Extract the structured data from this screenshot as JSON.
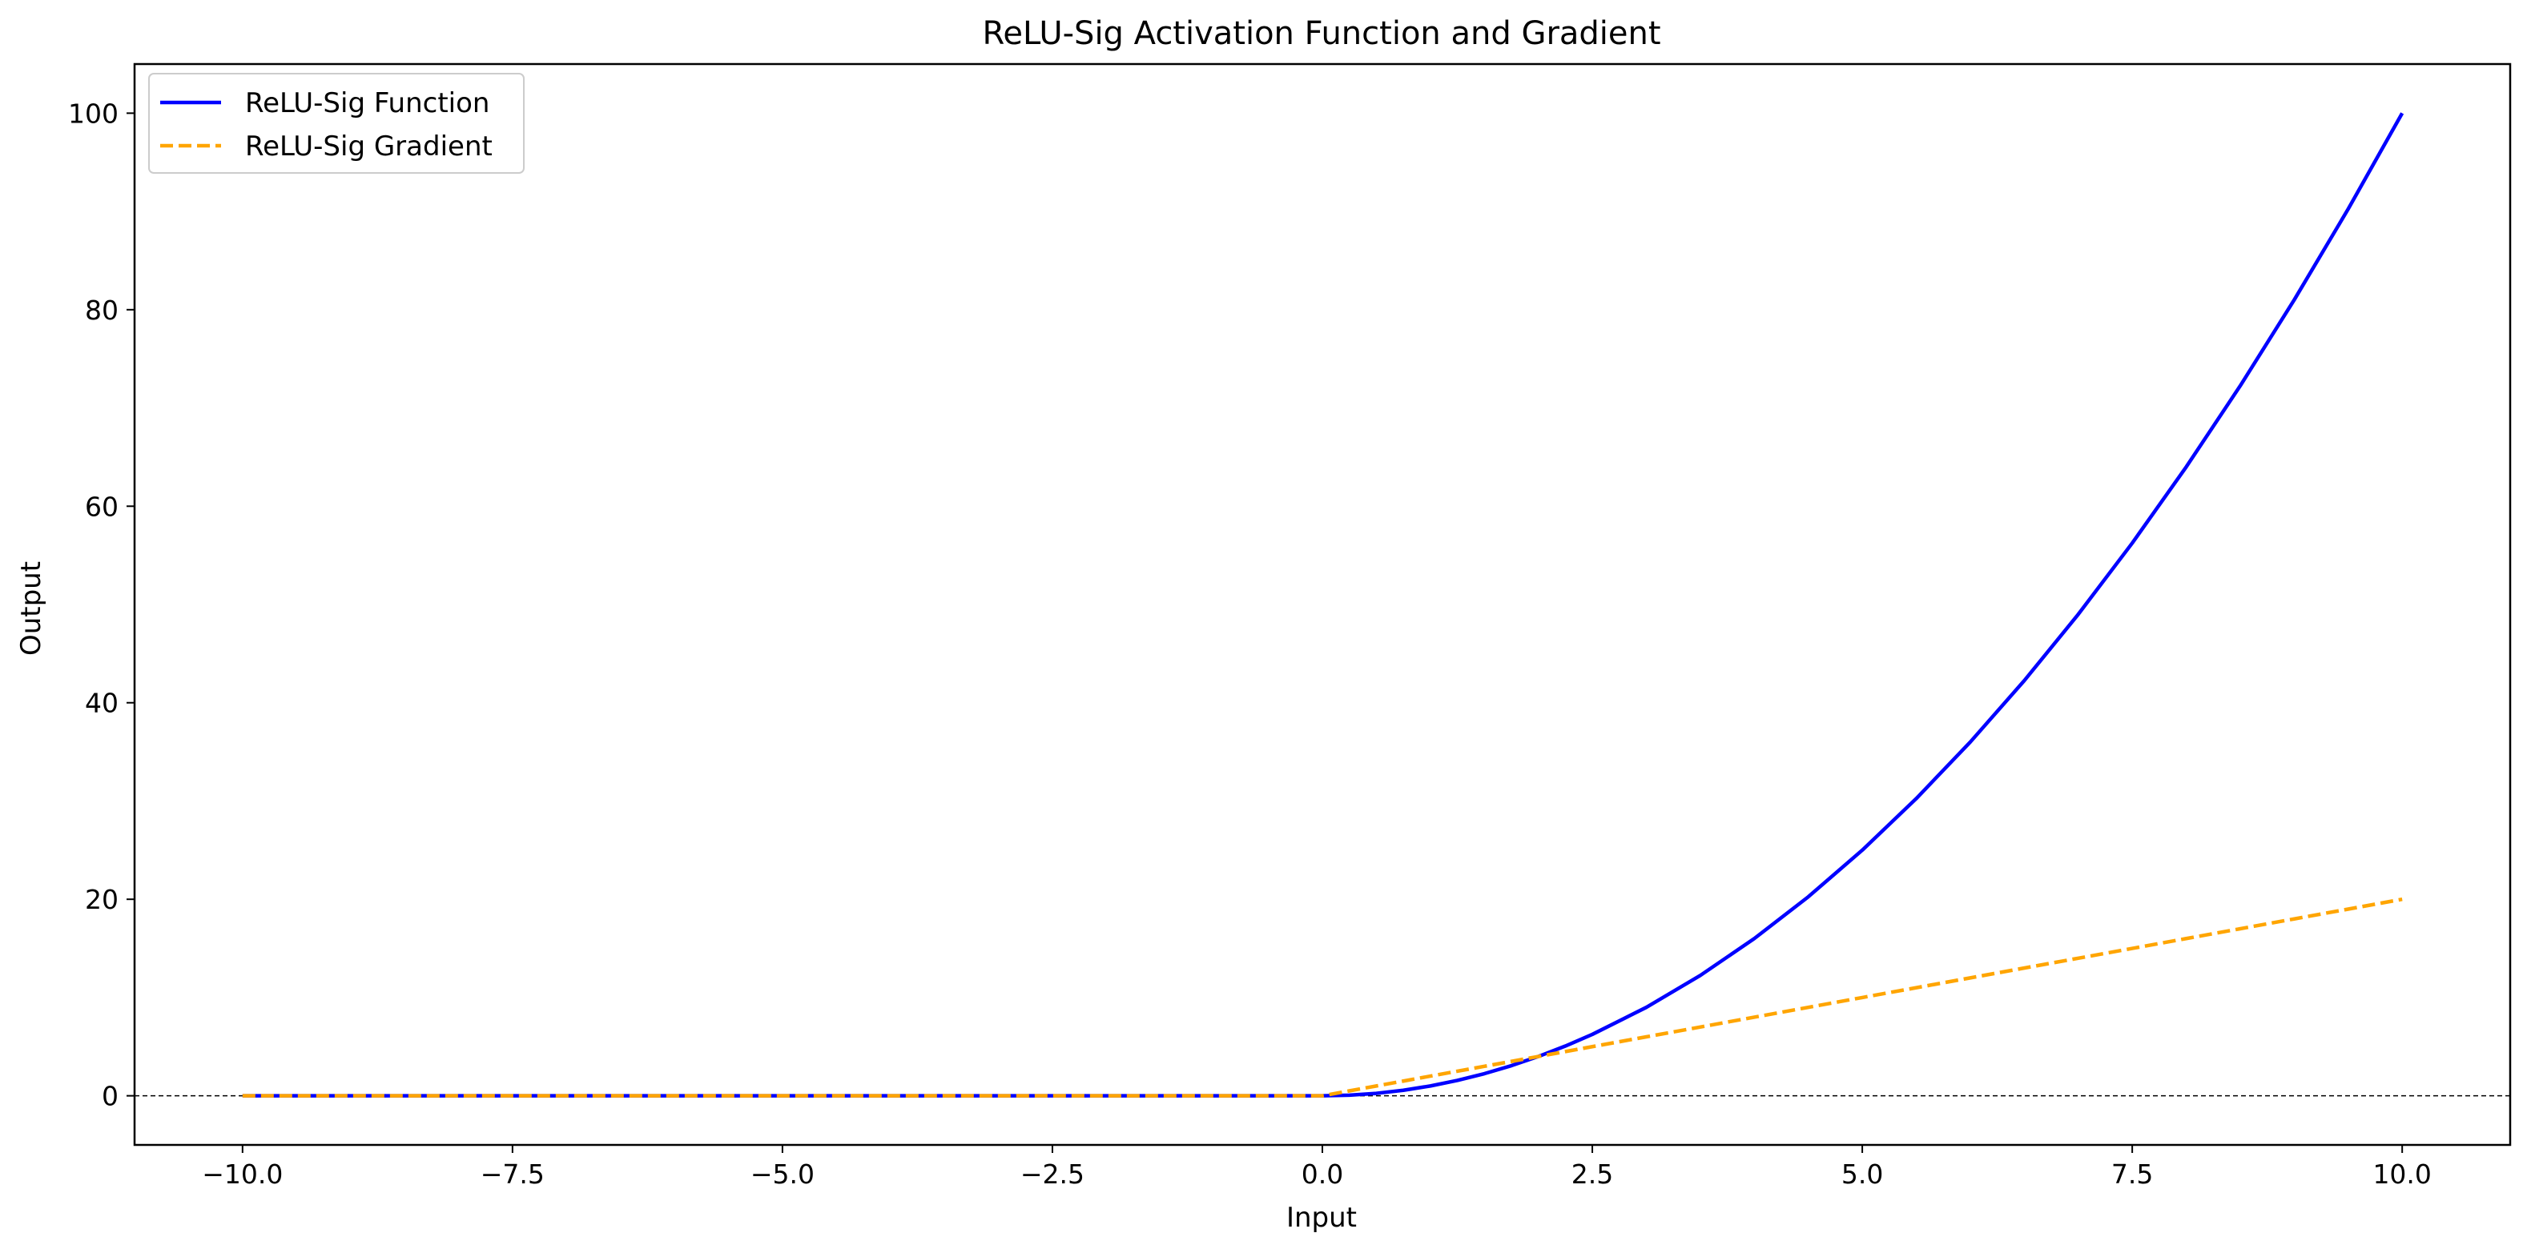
{
  "chart_data": {
    "type": "line",
    "title": "ReLU-Sig Activation Function and Gradient",
    "xlabel": "Input",
    "ylabel": "Output",
    "xlim": [
      -11.0,
      11.0
    ],
    "ylim": [
      -5.0,
      105.0
    ],
    "xticks": [
      {
        "value": -10.0,
        "label": "−10.0"
      },
      {
        "value": -7.5,
        "label": "−7.5"
      },
      {
        "value": -5.0,
        "label": "−5.0"
      },
      {
        "value": -2.5,
        "label": "−2.5"
      },
      {
        "value": 0.0,
        "label": "0.0"
      },
      {
        "value": 2.5,
        "label": "2.5"
      },
      {
        "value": 5.0,
        "label": "5.0"
      },
      {
        "value": 7.5,
        "label": "7.5"
      },
      {
        "value": 10.0,
        "label": "10.0"
      }
    ],
    "yticks": [
      {
        "value": 0,
        "label": "0"
      },
      {
        "value": 20,
        "label": "20"
      },
      {
        "value": 40,
        "label": "40"
      },
      {
        "value": 60,
        "label": "60"
      },
      {
        "value": 80,
        "label": "80"
      },
      {
        "value": 100,
        "label": "100"
      }
    ],
    "grid": false,
    "legend_position": "top-left",
    "reference_line": {
      "y": 0,
      "style": "dashed",
      "color": "#000000"
    },
    "series": [
      {
        "name": "ReLU-Sig Function",
        "color": "#0000ff",
        "style": "solid",
        "x": [
          -10,
          -7.5,
          -5,
          -2.5,
          0,
          0.25,
          0.5,
          0.75,
          1,
          1.25,
          1.5,
          1.75,
          2,
          2.25,
          2.5,
          3,
          3.5,
          4,
          4.5,
          5,
          5.5,
          6,
          6.5,
          7,
          7.5,
          8,
          8.5,
          9,
          9.5,
          10
        ],
        "y": [
          0,
          0,
          0,
          0,
          0,
          0.0625,
          0.25,
          0.5625,
          1,
          1.5625,
          2.25,
          3.0625,
          4,
          5.0625,
          6.25,
          9,
          12.25,
          16,
          20.25,
          25,
          30.25,
          36,
          42.25,
          49,
          56.25,
          64,
          72.25,
          81,
          90.25,
          100
        ]
      },
      {
        "name": "ReLU-Sig Gradient",
        "color": "#ffa500",
        "style": "dashed",
        "x": [
          -10,
          -7.5,
          -5,
          -2.5,
          0,
          0.25,
          0.5,
          0.75,
          1,
          1.5,
          2,
          2.5,
          3,
          4,
          5,
          6,
          7,
          8,
          9,
          10
        ],
        "y": [
          0,
          0,
          0,
          0,
          0,
          0.5,
          1,
          1.5,
          2,
          3,
          4,
          5,
          6,
          8,
          10,
          12,
          14,
          16,
          18,
          20
        ]
      }
    ]
  }
}
